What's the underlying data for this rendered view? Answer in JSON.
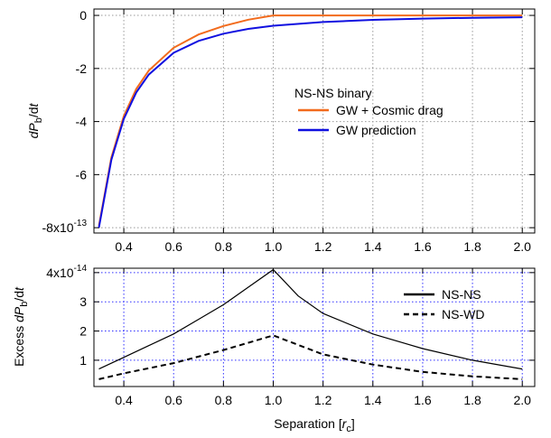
{
  "chart_data": [
    {
      "type": "line",
      "ylabel": [
        "d",
        "P",
        "b",
        "/d",
        "t"
      ],
      "xlim": [
        0.28,
        2.05
      ],
      "ylim": [
        -8.2,
        0.24
      ],
      "xticks": [
        0.4,
        0.6,
        0.8,
        {
          "value": 1,
          "label": "1.0"
        },
        1.2,
        1.4,
        1.6,
        1.8,
        {
          "value": 2,
          "label": "2.0"
        }
      ],
      "yticks": [
        0,
        -2,
        -4,
        -6,
        {
          "value": -8,
          "label": "-8x10",
          "exponent": "-13"
        }
      ],
      "grid": true,
      "grid_color": "#999999",
      "legend_title": "NS-NS binary",
      "series": [
        {
          "name": "GW + Cosmic drag",
          "color": "#f26b1d",
          "dash": false,
          "x": [
            0.3,
            0.35,
            0.4,
            0.45,
            0.5,
            0.6,
            0.7,
            0.8,
            0.9,
            1.0,
            1.2,
            1.4,
            1.6,
            1.8,
            2.0
          ],
          "values": [
            -7.93,
            -5.35,
            -3.79,
            -2.77,
            -2.08,
            -1.22,
            -0.72,
            -0.4,
            -0.16,
            0,
            0,
            0,
            0,
            0,
            0
          ]
        },
        {
          "name": "GW prediction",
          "color": "#1010e0",
          "dash": false,
          "x": [
            0.3,
            0.35,
            0.4,
            0.45,
            0.5,
            0.6,
            0.7,
            0.8,
            0.9,
            1.0,
            1.2,
            1.4,
            1.6,
            1.8,
            2.0
          ],
          "values": [
            -8,
            -5.44,
            -3.9,
            -2.9,
            -2.23,
            -1.41,
            -0.96,
            -0.69,
            -0.51,
            -0.39,
            -0.25,
            -0.17,
            -0.12,
            -0.09,
            -0.07
          ]
        }
      ]
    },
    {
      "type": "line",
      "ylabel": [
        "Excess ",
        "d",
        "P",
        "b",
        "/d",
        "t"
      ],
      "xlabel": [
        "Separation [",
        "r",
        "c",
        "]"
      ],
      "xlim": [
        0.28,
        2.05
      ],
      "ylim": [
        0.1,
        4.15
      ],
      "xticks": [
        0.4,
        0.6,
        0.8,
        {
          "value": 1,
          "label": "1.0"
        },
        1.2,
        1.4,
        1.6,
        1.8,
        {
          "value": 2,
          "label": "2.0"
        }
      ],
      "yticks": [
        {
          "value": 4,
          "label": "4x10",
          "exponent": "-14"
        },
        3,
        2,
        1
      ],
      "grid": true,
      "grid_color": "#3030ff",
      "series": [
        {
          "name": "NS-NS",
          "color": "#000000",
          "dash": false,
          "x": [
            0.3,
            0.4,
            0.5,
            0.6,
            0.7,
            0.8,
            0.9,
            1.0,
            1.1,
            1.2,
            1.4,
            1.6,
            1.8,
            2.0
          ],
          "values": [
            0.7,
            1.1,
            1.5,
            1.9,
            2.4,
            2.9,
            3.5,
            4.1,
            3.2,
            2.6,
            1.9,
            1.4,
            1.0,
            0.7
          ]
        },
        {
          "name": "NS-WD",
          "color": "#000000",
          "dash": true,
          "x": [
            0.3,
            0.4,
            0.6,
            0.8,
            1.0,
            1.2,
            1.4,
            1.6,
            1.8,
            2.0
          ],
          "values": [
            0.35,
            0.55,
            0.9,
            1.35,
            1.85,
            1.2,
            0.85,
            0.6,
            0.45,
            0.35
          ]
        }
      ]
    }
  ]
}
